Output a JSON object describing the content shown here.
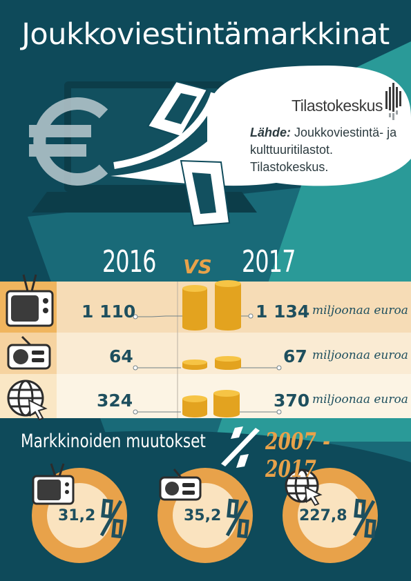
{
  "title": "Joukkoviestintämarkkinat",
  "logo": {
    "text": "Tilastokeskus"
  },
  "source": {
    "label": "Lähde:",
    "text": "Joukkoviestintä- ja kulttuuritilastot. Tilastokeskus."
  },
  "comparison": {
    "year_a": "2016",
    "vs": "VS",
    "year_b": "2017",
    "rows": [
      {
        "medium": "tv",
        "icon": "tv-icon",
        "value_2016": "1 110",
        "value_2017": "1 134",
        "unit": "miljoonaa euroa"
      },
      {
        "medium": "radio",
        "icon": "radio-icon",
        "value_2016": "64",
        "value_2017": "67",
        "unit": "miljoonaa euroa"
      },
      {
        "medium": "internet",
        "icon": "globe-icon",
        "value_2016": "324",
        "value_2017": "370",
        "unit": "miljoonaa euroa"
      }
    ]
  },
  "changes": {
    "title": "Markkinoiden muutokset",
    "period": "2007 - 2017",
    "items": [
      {
        "medium": "tv",
        "icon": "tv-icon",
        "value": "31,2"
      },
      {
        "medium": "radio",
        "icon": "radio-icon",
        "value": "35,2"
      },
      {
        "medium": "internet",
        "icon": "globe-icon",
        "value": "227,8"
      }
    ]
  },
  "colors": {
    "dark_teal": "#0e4a5a",
    "mid_teal": "#196a78",
    "accent_teal": "#2a9a98",
    "orange": "#e8a24a",
    "coin_gold": "#f0b732",
    "text_dark": "#1e4f5e"
  }
}
